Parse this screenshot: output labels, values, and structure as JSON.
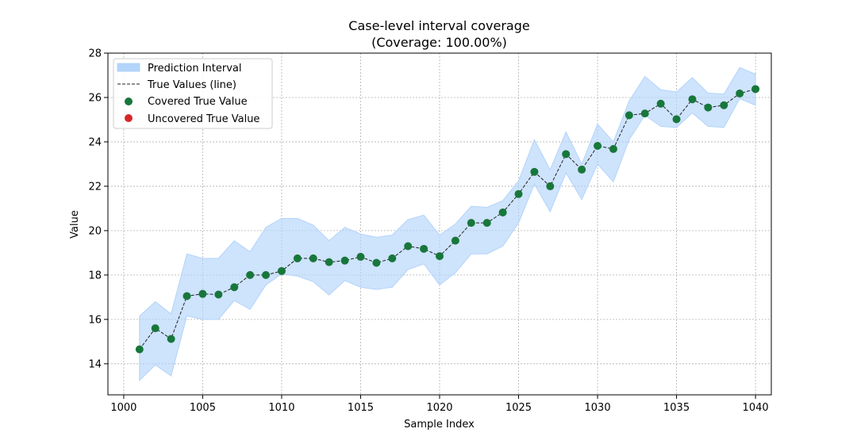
{
  "chart_data": {
    "type": "line",
    "title_line1": "Case-level interval coverage",
    "title_line2": "(Coverage: 100.00%)",
    "xlabel": "Sample Index",
    "ylabel": "Value",
    "xlim": [
      999,
      1041
    ],
    "ylim": [
      12.6,
      28
    ],
    "xticks": [
      1000,
      1005,
      1010,
      1015,
      1020,
      1025,
      1030,
      1035,
      1040
    ],
    "yticks": [
      14,
      16,
      18,
      20,
      22,
      24,
      26,
      28
    ],
    "grid": true,
    "legend_position": "upper-left",
    "legend": {
      "interval": "Prediction Interval",
      "line": "True Values (line)",
      "covered": "Covered True Value",
      "uncovered": "Uncovered True Value"
    },
    "colors": {
      "interval_fill": "#b3d4fb",
      "line": "#222222",
      "covered": "#17773b",
      "uncovered": "#d62728"
    },
    "x": [
      1001,
      1002,
      1003,
      1004,
      1005,
      1006,
      1007,
      1008,
      1009,
      1010,
      1011,
      1012,
      1013,
      1014,
      1015,
      1016,
      1017,
      1018,
      1019,
      1020,
      1021,
      1022,
      1023,
      1024,
      1025,
      1026,
      1027,
      1028,
      1029,
      1030,
      1031,
      1032,
      1033,
      1034,
      1035,
      1036,
      1037,
      1038,
      1039,
      1040
    ],
    "true_values": [
      14.65,
      15.6,
      15.12,
      17.05,
      17.15,
      17.12,
      17.45,
      18.0,
      18.0,
      18.18,
      18.75,
      18.75,
      18.58,
      18.65,
      18.82,
      18.55,
      18.75,
      19.3,
      19.18,
      18.85,
      19.55,
      20.35,
      20.35,
      20.82,
      21.65,
      22.65,
      22.0,
      23.45,
      22.75,
      23.82,
      23.68,
      25.2,
      25.28,
      25.72,
      25.02,
      25.92,
      25.55,
      25.65,
      26.18,
      26.38
    ],
    "lower": [
      13.25,
      13.95,
      13.45,
      16.15,
      16.0,
      16.0,
      16.85,
      16.45,
      17.55,
      18.05,
      17.95,
      17.7,
      17.1,
      17.75,
      17.45,
      17.35,
      17.45,
      18.25,
      18.5,
      17.55,
      18.1,
      18.95,
      18.95,
      19.3,
      20.35,
      22.1,
      20.85,
      22.6,
      21.4,
      23.0,
      22.2,
      24.1,
      25.2,
      24.7,
      24.65,
      25.3,
      24.7,
      24.65,
      25.95,
      25.65
    ],
    "upper": [
      16.15,
      16.8,
      16.25,
      18.95,
      18.75,
      18.75,
      19.55,
      19.05,
      20.15,
      20.55,
      20.55,
      20.25,
      19.55,
      20.15,
      19.85,
      19.7,
      19.8,
      20.5,
      20.7,
      19.8,
      20.3,
      21.1,
      21.05,
      21.35,
      22.25,
      24.1,
      22.75,
      24.45,
      23.0,
      24.8,
      24.0,
      25.85,
      26.95,
      26.35,
      26.25,
      26.9,
      26.2,
      26.15,
      27.35,
      27.05
    ],
    "covered": [
      true,
      true,
      true,
      true,
      true,
      true,
      true,
      true,
      true,
      true,
      true,
      true,
      true,
      true,
      true,
      true,
      true,
      true,
      true,
      true,
      true,
      true,
      true,
      true,
      true,
      true,
      true,
      true,
      true,
      true,
      true,
      true,
      true,
      true,
      true,
      true,
      true,
      true,
      true,
      true
    ]
  }
}
